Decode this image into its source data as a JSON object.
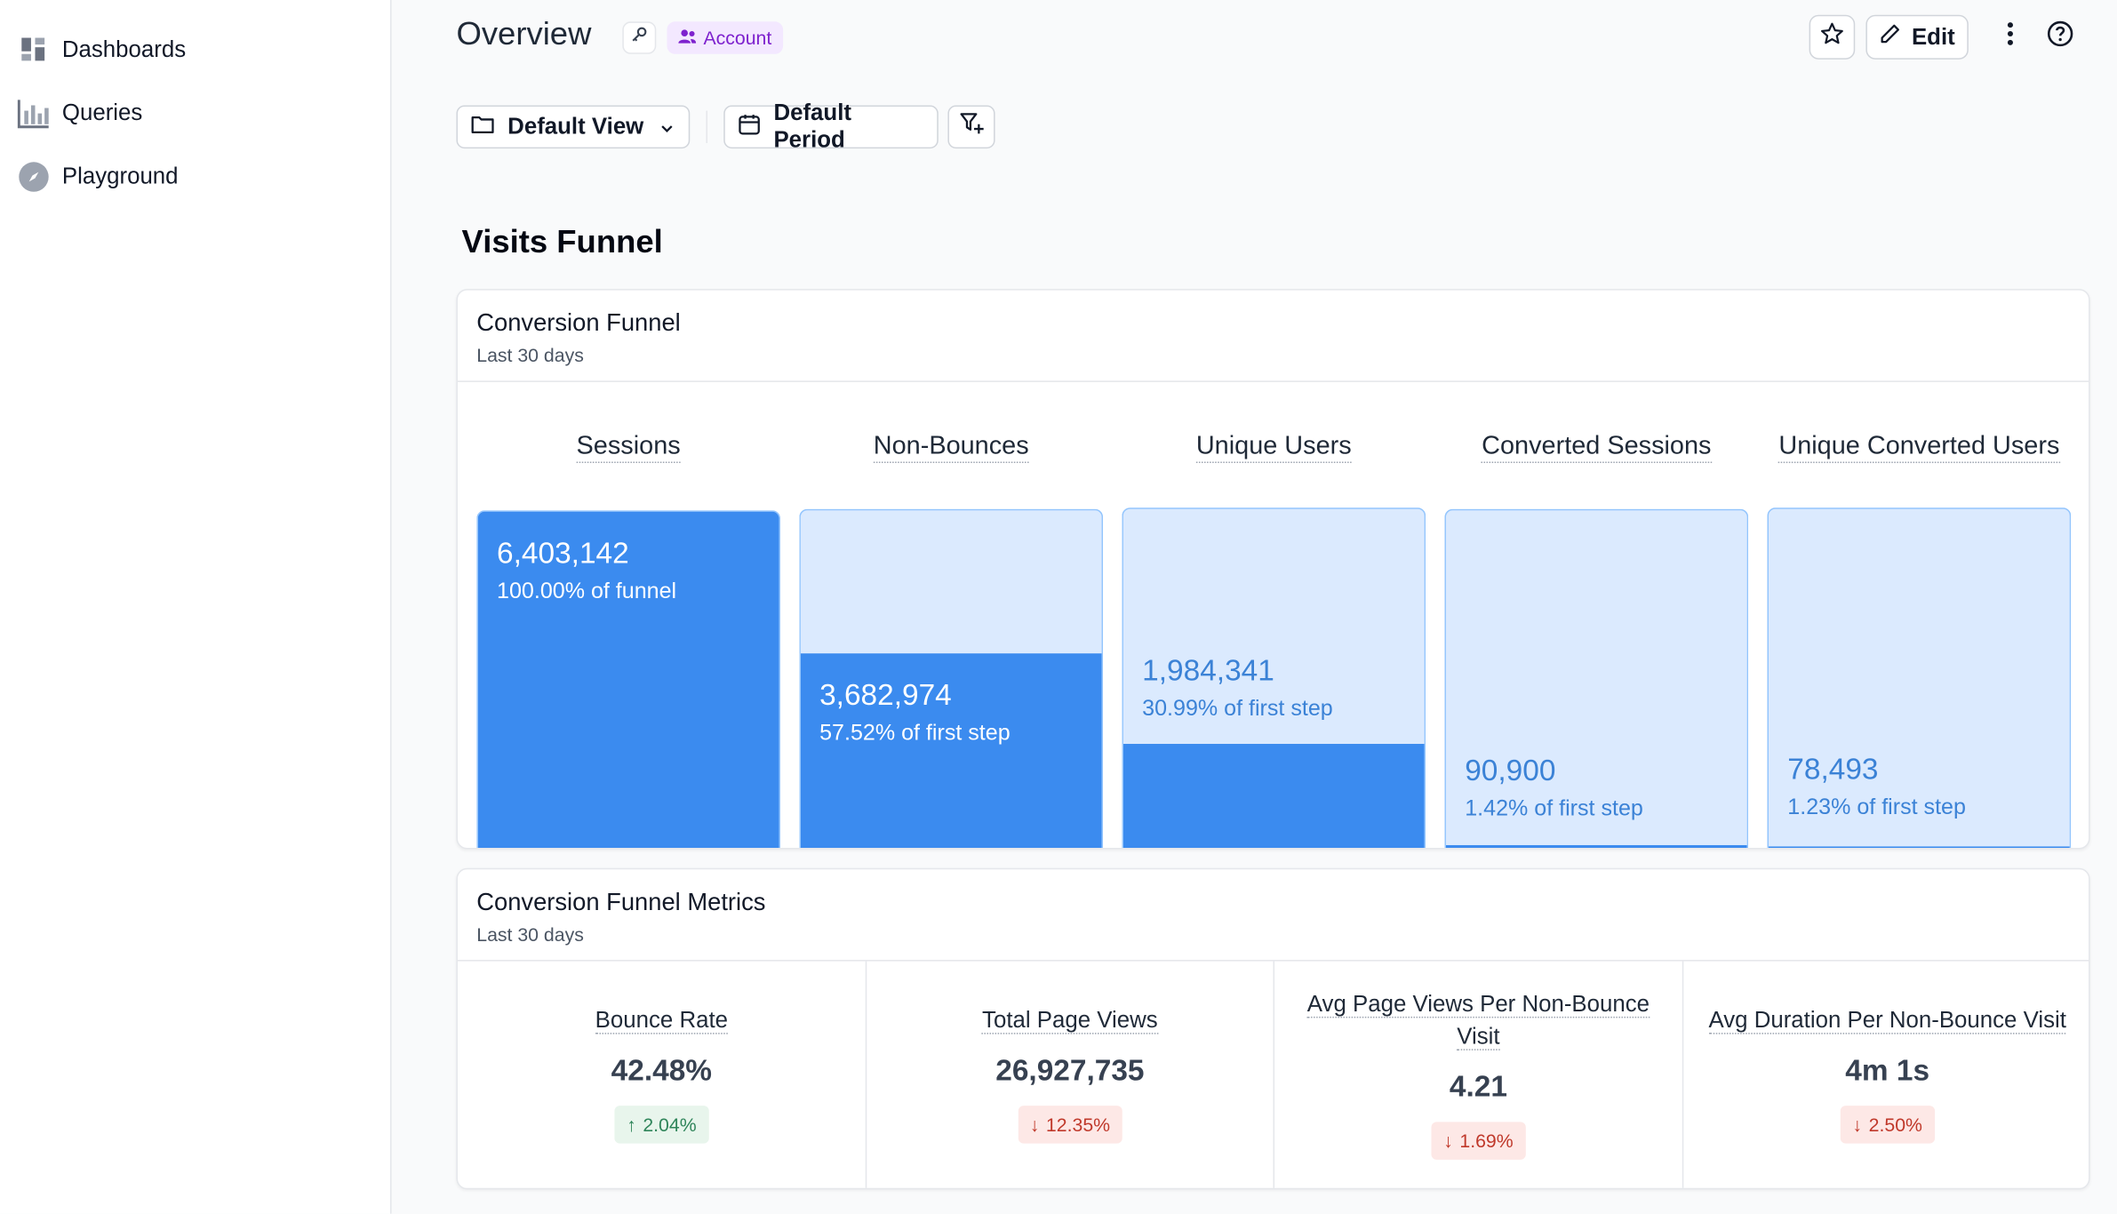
{
  "sidebar": {
    "items": [
      {
        "label": "Dashboards",
        "icon": "dashboard-grid-icon"
      },
      {
        "label": "Queries",
        "icon": "bar-chart-icon"
      },
      {
        "label": "Playground",
        "icon": "compass-icon"
      }
    ]
  },
  "header": {
    "title": "Overview",
    "badge": "Account",
    "edit_label": "Edit"
  },
  "filters": {
    "view_label": "Default View",
    "period_label": "Default Period"
  },
  "section_title": "Visits Funnel",
  "funnel_card": {
    "title": "Conversion Funnel",
    "subtitle": "Last 30 days",
    "steps": [
      {
        "label": "Sessions",
        "value": "6,403,142",
        "pct": "100.00% of funnel",
        "fraction": 1.0
      },
      {
        "label": "Non-Bounces",
        "value": "3,682,974",
        "pct": "57.52% of first step",
        "fraction": 0.5752
      },
      {
        "label": "Unique Users",
        "value": "1,984,341",
        "pct": "30.99% of first step",
        "fraction": 0.3099
      },
      {
        "label": "Converted Sessions",
        "value": "90,900",
        "pct": "1.42% of first step",
        "fraction": 0.0142
      },
      {
        "label": "Unique Converted Users",
        "value": "78,493",
        "pct": "1.23% of first step",
        "fraction": 0.0123
      }
    ]
  },
  "metrics_card": {
    "title": "Conversion Funnel Metrics",
    "subtitle": "Last 30 days",
    "metrics": [
      {
        "label": "Bounce Rate",
        "value": "42.48%",
        "delta": "2.04%",
        "direction": "up"
      },
      {
        "label": "Total Page Views",
        "value": "26,927,735",
        "delta": "12.35%",
        "direction": "down"
      },
      {
        "label": "Avg Page Views Per Non-Bounce Visit",
        "value": "4.21",
        "delta": "1.69%",
        "direction": "down"
      },
      {
        "label": "Avg Duration Per Non-Bounce Visit",
        "value": "4m 1s",
        "delta": "2.50%",
        "direction": "down"
      }
    ]
  },
  "colors": {
    "bar_fill": "#3b8bef",
    "bar_bg": "#dbeafe",
    "badge_bg": "#f3e8ff",
    "badge_text": "#7e22ce"
  }
}
